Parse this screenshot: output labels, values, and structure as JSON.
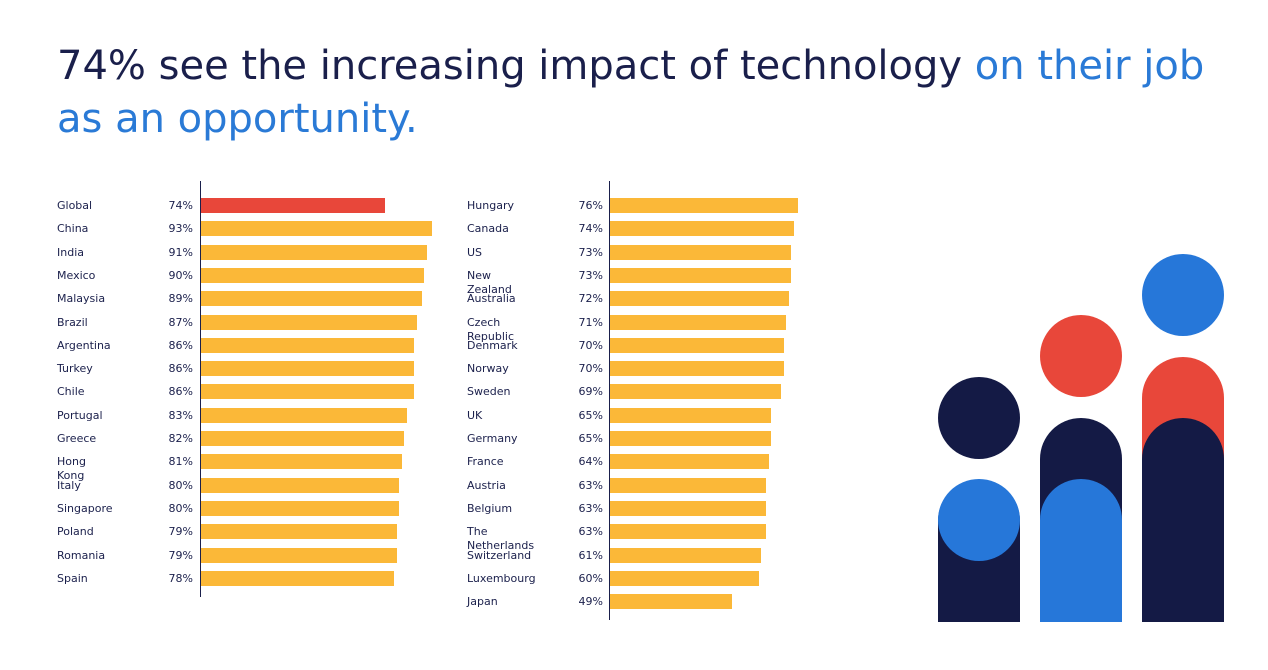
{
  "title": {
    "part1": "74% see the increasing impact of technology ",
    "part2": "on their job as an opportunity."
  },
  "colors": {
    "highlight": "#e8473a",
    "bar": "#fbb838",
    "navy": "#141a45",
    "blue": "#2677d9",
    "red": "#e8473a"
  },
  "chart_data": [
    {
      "type": "bar",
      "orientation": "horizontal",
      "unit": "%",
      "categories": [
        "Global",
        "China",
        "India",
        "Mexico",
        "Malaysia",
        "Brazil",
        "Argentina",
        "Turkey",
        "Chile",
        "Portugal",
        "Greece",
        "Hong Kong",
        "Italy",
        "Singapore",
        "Poland",
        "Romania",
        "Spain"
      ],
      "values": [
        74,
        93,
        91,
        90,
        89,
        87,
        86,
        86,
        86,
        83,
        82,
        81,
        80,
        80,
        79,
        79,
        78
      ],
      "value_labels": [
        "74%",
        "93%",
        "91%",
        "90%",
        "89%",
        "87%",
        "86%",
        "86%",
        "86%",
        "83%",
        "82%",
        "81%",
        "80%",
        "80%",
        "79%",
        "79%",
        "78%"
      ],
      "highlight": "Global",
      "xlim": [
        0,
        100
      ]
    },
    {
      "type": "bar",
      "orientation": "horizontal",
      "unit": "%",
      "categories": [
        "Hungary",
        "Canada",
        "US",
        "New Zealand",
        "Australia",
        "Czech Republic",
        "Denmark",
        "Norway",
        "Sweden",
        "UK",
        "Germany",
        "France",
        "Austria",
        "Belgium",
        "The Netherlands",
        "Switzerland",
        "Luxembourg",
        "Japan"
      ],
      "values": [
        76,
        74,
        73,
        73,
        72,
        71,
        70,
        70,
        69,
        65,
        65,
        64,
        63,
        63,
        63,
        61,
        60,
        49
      ],
      "value_labels": [
        "76%",
        "74%",
        "73%",
        "73%",
        "72%",
        "71%",
        "70%",
        "70%",
        "69%",
        "65%",
        "65%",
        "64%",
        "63%",
        "63%",
        "63%",
        "61%",
        "60%",
        "49%"
      ],
      "xlim": [
        0,
        100
      ]
    }
  ]
}
